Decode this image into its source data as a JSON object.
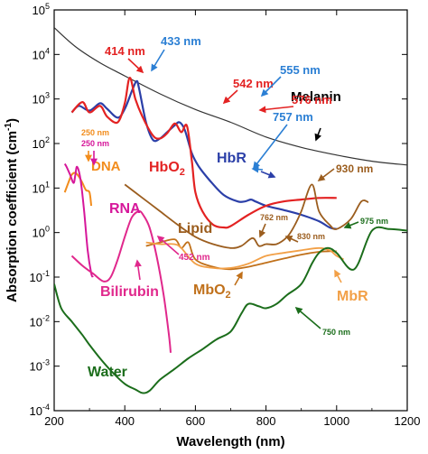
{
  "chart_data": {
    "type": "line",
    "title": "",
    "xlabel": "Wavelength (nm)",
    "ylabel": "Absorption coefficient (cm-1)",
    "ylabel_base": "Absorption coefficient (cm",
    "ylabel_sup": "-1",
    "ylabel_close": ")",
    "xlim": [
      200,
      1200
    ],
    "ylim": [
      0.0001,
      100000
    ],
    "yscale": "log",
    "grid": false,
    "xticks": [
      200,
      400,
      600,
      800,
      1000,
      1200
    ],
    "xtick_labels": [
      "200",
      "400",
      "600",
      "800",
      "1000",
      "1200"
    ],
    "yticks": [
      {
        "value": 100000,
        "base": "10",
        "exp": "5"
      },
      {
        "value": 10000,
        "base": "10",
        "exp": "4"
      },
      {
        "value": 1000,
        "base": "10",
        "exp": "3"
      },
      {
        "value": 100,
        "base": "10",
        "exp": "2"
      },
      {
        "value": 10,
        "base": "10",
        "exp": "1"
      },
      {
        "value": 1,
        "base": "10",
        "exp": "0"
      },
      {
        "value": 0.1,
        "base": "10",
        "exp": "-1"
      },
      {
        "value": 0.01,
        "base": "10",
        "exp": "-2"
      },
      {
        "value": 0.001,
        "base": "10",
        "exp": "-3"
      },
      {
        "value": 0.0001,
        "base": "10",
        "exp": "-4"
      }
    ],
    "series": [
      {
        "name": "Melanin",
        "color": "#333333",
        "width": 1.2,
        "x": [
          200,
          260,
          330,
          400,
          500,
          600,
          700,
          800,
          900,
          1000,
          1100,
          1200
        ],
        "y": [
          40000,
          15000,
          6500,
          3300,
          1300,
          580,
          300,
          140,
          82,
          55,
          40,
          33
        ]
      },
      {
        "name": "HbR",
        "color": "#2b3fa8",
        "width": 2.2,
        "x": [
          250,
          270,
          300,
          330,
          350,
          380,
          400,
          420,
          433,
          440,
          460,
          480,
          500,
          520,
          540,
          555,
          570,
          590,
          610,
          640,
          680,
          720,
          740,
          757,
          770,
          800,
          850,
          900,
          950,
          980,
          1000
        ],
        "y": [
          500,
          700,
          550,
          800,
          600,
          380,
          600,
          1500,
          2500,
          1800,
          300,
          120,
          130,
          180,
          250,
          300,
          200,
          60,
          30,
          15,
          7,
          5,
          5,
          5.5,
          5,
          4,
          3.2,
          2.5,
          1.8,
          1.3,
          1.2
        ]
      },
      {
        "name": "HbO2",
        "color": "#e32222",
        "width": 2.2,
        "x": [
          250,
          280,
          300,
          330,
          350,
          380,
          400,
          414,
          430,
          450,
          480,
          500,
          520,
          542,
          560,
          576,
          590,
          600,
          620,
          650,
          680,
          700,
          750,
          800,
          850,
          900,
          950,
          1000
        ],
        "y": [
          500,
          850,
          500,
          700,
          400,
          300,
          800,
          3000,
          1000,
          400,
          150,
          130,
          170,
          280,
          180,
          250,
          40,
          8,
          3,
          1.5,
          1.3,
          1.4,
          2.5,
          4,
          5,
          5.5,
          6,
          6
        ]
      },
      {
        "name": "DNA",
        "color": "#f28c1c",
        "width": 2,
        "x": [
          230,
          240,
          250,
          260,
          270,
          280,
          290,
          300,
          305
        ],
        "y": [
          8,
          13,
          20,
          22,
          18,
          13,
          9,
          8,
          4
        ]
      },
      {
        "name": "RNA",
        "color": "#d6179a",
        "width": 2,
        "x": [
          230,
          235,
          245,
          255,
          260,
          265,
          275,
          285,
          295,
          305,
          310
        ],
        "y": [
          35,
          30,
          20,
          13,
          20,
          30,
          15,
          3,
          0.4,
          0.12,
          0.1
        ]
      },
      {
        "name": "Bilirubin",
        "color": "#e0288c",
        "width": 2,
        "x": [
          250,
          280,
          310,
          340,
          360,
          380,
          400,
          420,
          440,
          452,
          470,
          490,
          510,
          525,
          530
        ],
        "y": [
          0.3,
          0.18,
          0.12,
          0.08,
          0.1,
          0.25,
          0.8,
          2.2,
          3,
          2.5,
          1.3,
          0.3,
          0.04,
          0.005,
          0.002
        ]
      },
      {
        "name": "Lipid",
        "color": "#9b5d1e",
        "width": 1.8,
        "x": [
          400,
          450,
          500,
          550,
          600,
          650,
          700,
          730,
          762,
          780,
          800,
          830,
          860,
          880,
          900,
          930,
          950,
          980,
          1000,
          1040,
          1070,
          1090
        ],
        "y": [
          12,
          6,
          3,
          1.5,
          0.8,
          0.55,
          0.45,
          0.5,
          0.75,
          0.5,
          0.55,
          0.55,
          0.8,
          1.4,
          3,
          12,
          3,
          1.5,
          1.2,
          2,
          5,
          4.8
        ]
      },
      {
        "name": "MbO2",
        "color": "#c0701a",
        "width": 1.8,
        "x": [
          460,
          500,
          542,
          560,
          580,
          600,
          650,
          700,
          750,
          800,
          850,
          900,
          950,
          980,
          1000
        ],
        "y": [
          0.5,
          0.6,
          0.7,
          0.45,
          0.6,
          0.25,
          0.17,
          0.15,
          0.17,
          0.21,
          0.26,
          0.32,
          0.37,
          0.38,
          0.38
        ]
      },
      {
        "name": "MbR",
        "color": "#f2a047",
        "width": 1.8,
        "x": [
          460,
          500,
          540,
          560,
          600,
          650,
          700,
          750,
          800,
          850,
          900,
          950,
          980,
          1000,
          1020
        ],
        "y": [
          0.6,
          0.55,
          0.55,
          0.45,
          0.2,
          0.16,
          0.16,
          0.2,
          0.3,
          0.35,
          0.4,
          0.45,
          0.4,
          0.3,
          0.25
        ]
      },
      {
        "name": "Water",
        "color": "#1b6d1b",
        "width": 2,
        "x": [
          200,
          220,
          250,
          280,
          300,
          330,
          360,
          400,
          430,
          450,
          470,
          500,
          540,
          580,
          620,
          660,
          700,
          730,
          750,
          780,
          800,
          830,
          860,
          900,
          930,
          950,
          975,
          1000,
          1050,
          1100,
          1150,
          1200
        ],
        "y": [
          0.07,
          0.02,
          0.01,
          0.005,
          0.003,
          0.0015,
          0.0008,
          0.0004,
          0.0003,
          0.00025,
          0.00028,
          0.0005,
          0.00085,
          0.0015,
          0.0024,
          0.004,
          0.006,
          0.015,
          0.025,
          0.022,
          0.02,
          0.025,
          0.04,
          0.07,
          0.2,
          0.35,
          0.45,
          0.35,
          0.15,
          1.1,
          1.2,
          1.1
        ]
      }
    ],
    "series_labels": [
      {
        "text": "Melanin",
        "color": "#000000"
      },
      {
        "text": "HbR",
        "color": "#2b3fa8"
      },
      {
        "text": "HbO",
        "sub": "2",
        "color": "#e32222"
      },
      {
        "text": "DNA",
        "color": "#f28c1c"
      },
      {
        "text": "RNA",
        "color": "#d6179a"
      },
      {
        "text": "Bilirubin",
        "color": "#e0288c"
      },
      {
        "text": "Lipid",
        "color": "#9b5d1e"
      },
      {
        "text": "MbO",
        "sub": "2",
        "color": "#c0701a"
      },
      {
        "text": "MbR",
        "color": "#f2a047"
      },
      {
        "text": "Water",
        "color": "#1b6d1b"
      }
    ],
    "annotations": [
      {
        "text": "414 nm",
        "color": "#e32222"
      },
      {
        "text": "433 nm",
        "color": "#2b7fd4"
      },
      {
        "text": "555 nm",
        "color": "#2b7fd4"
      },
      {
        "text": "542 nm",
        "color": "#e32222"
      },
      {
        "text": "576 nm",
        "color": "#e32222"
      },
      {
        "text": "757 nm",
        "color": "#2b7fd4"
      },
      {
        "text": "930 nm",
        "color": "#9b5d1e"
      },
      {
        "text": "250 nm",
        "color": "#f28c1c"
      },
      {
        "text": "250 nm",
        "color": "#d6179a"
      },
      {
        "text": "762 nm",
        "color": "#9b5d1e"
      },
      {
        "text": "830 nm",
        "color": "#9b5d1e"
      },
      {
        "text": "975 nm",
        "color": "#1b6d1b"
      },
      {
        "text": "452 nm",
        "color": "#e0288c"
      },
      {
        "text": "750 nm",
        "color": "#1b6d1b"
      }
    ]
  }
}
